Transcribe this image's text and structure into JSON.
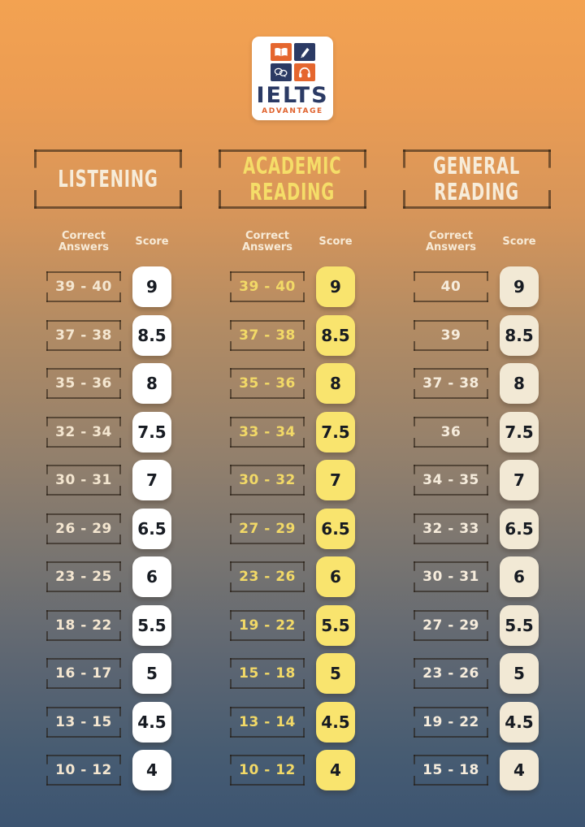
{
  "logo": {
    "title": "IELTS",
    "subtitle": "ADVANTAGE",
    "tiles": [
      "book-icon",
      "pen-icon",
      "speech-bubbles-icon",
      "headphones-icon"
    ],
    "navy": "#2b3a64",
    "orange": "#e5662e"
  },
  "colors": {
    "background_top": "#f3a251",
    "background_bottom": "#3c5471",
    "bracket_border": "rgba(33,23,13,0.55)",
    "cream_text": "#f6e9d4",
    "yellow_text": "#f2d967",
    "listening_score_box": "#ffffff",
    "academic_score_box": "#f9e46e",
    "general_score_box": "#f2e9d5"
  },
  "columns": [
    {
      "title_lines": [
        "LISTENING"
      ],
      "title_color": "#f7ecd9",
      "range_text_color": "#f4e6d0",
      "score_box_color": "#ffffff",
      "labels": {
        "correct": "Correct\nAnswers",
        "score": "Score"
      },
      "rows": [
        {
          "range": "39 - 40",
          "score": "9"
        },
        {
          "range": "37 - 38",
          "score": "8.5"
        },
        {
          "range": "35 - 36",
          "score": "8"
        },
        {
          "range": "32 - 34",
          "score": "7.5"
        },
        {
          "range": "30 - 31",
          "score": "7"
        },
        {
          "range": "26 - 29",
          "score": "6.5"
        },
        {
          "range": "23 - 25",
          "score": "6"
        },
        {
          "range": "18 - 22",
          "score": "5.5"
        },
        {
          "range": "16 - 17",
          "score": "5"
        },
        {
          "range": "13 - 15",
          "score": "4.5"
        },
        {
          "range": "10 - 12",
          "score": "4"
        }
      ]
    },
    {
      "title_lines": [
        "ACADEMIC",
        "READING"
      ],
      "title_color": "#f5dd68",
      "range_text_color": "#f2d967",
      "score_box_color": "#f9e46e",
      "labels": {
        "correct": "Correct\nAnswers",
        "score": "Score"
      },
      "rows": [
        {
          "range": "39 - 40",
          "score": "9"
        },
        {
          "range": "37 - 38",
          "score": "8.5"
        },
        {
          "range": "35 - 36",
          "score": "8"
        },
        {
          "range": "33 - 34",
          "score": "7.5"
        },
        {
          "range": "30 - 32",
          "score": "7"
        },
        {
          "range": "27 - 29",
          "score": "6.5"
        },
        {
          "range": "23 - 26",
          "score": "6"
        },
        {
          "range": "19 - 22",
          "score": "5.5"
        },
        {
          "range": "15 - 18",
          "score": "5"
        },
        {
          "range": "13 - 14",
          "score": "4.5"
        },
        {
          "range": "10 - 12",
          "score": "4"
        }
      ]
    },
    {
      "title_lines": [
        "GENERAL",
        "READING"
      ],
      "title_color": "#f7ecd9",
      "range_text_color": "#f6ecdc",
      "score_box_color": "#f2e9d5",
      "labels": {
        "correct": "Correct\nAnswers",
        "score": "Score"
      },
      "rows": [
        {
          "range": "40",
          "score": "9"
        },
        {
          "range": "39",
          "score": "8.5"
        },
        {
          "range": "37 - 38",
          "score": "8"
        },
        {
          "range": "36",
          "score": "7.5"
        },
        {
          "range": "34 - 35",
          "score": "7"
        },
        {
          "range": "32 - 33",
          "score": "6.5"
        },
        {
          "range": "30 - 31",
          "score": "6"
        },
        {
          "range": "27 - 29",
          "score": "5.5"
        },
        {
          "range": "23 - 26",
          "score": "5"
        },
        {
          "range": "19 - 22",
          "score": "4.5"
        },
        {
          "range": "15 - 18",
          "score": "4"
        }
      ]
    }
  ],
  "chart_data": [
    {
      "type": "table",
      "title": "LISTENING",
      "columns": [
        "Correct Answers",
        "Score"
      ],
      "rows": [
        [
          "39 - 40",
          9
        ],
        [
          "37 - 38",
          8.5
        ],
        [
          "35 - 36",
          8
        ],
        [
          "32 - 34",
          7.5
        ],
        [
          "30 - 31",
          7
        ],
        [
          "26 - 29",
          6.5
        ],
        [
          "23 - 25",
          6
        ],
        [
          "18 - 22",
          5.5
        ],
        [
          "16 - 17",
          5
        ],
        [
          "13 - 15",
          4.5
        ],
        [
          "10 - 12",
          4
        ]
      ]
    },
    {
      "type": "table",
      "title": "ACADEMIC READING",
      "columns": [
        "Correct Answers",
        "Score"
      ],
      "rows": [
        [
          "39 - 40",
          9
        ],
        [
          "37 - 38",
          8.5
        ],
        [
          "35 - 36",
          8
        ],
        [
          "33 - 34",
          7.5
        ],
        [
          "30 - 32",
          7
        ],
        [
          "27 - 29",
          6.5
        ],
        [
          "23 - 26",
          6
        ],
        [
          "19 - 22",
          5.5
        ],
        [
          "15 - 18",
          5
        ],
        [
          "13 - 14",
          4.5
        ],
        [
          "10 - 12",
          4
        ]
      ]
    },
    {
      "type": "table",
      "title": "GENERAL READING",
      "columns": [
        "Correct Answers",
        "Score"
      ],
      "rows": [
        [
          "40",
          9
        ],
        [
          "39",
          8.5
        ],
        [
          "37 - 38",
          8
        ],
        [
          "36",
          7.5
        ],
        [
          "34 - 35",
          7
        ],
        [
          "32 - 33",
          6.5
        ],
        [
          "30 - 31",
          6
        ],
        [
          "27 - 29",
          5.5
        ],
        [
          "23 - 26",
          5
        ],
        [
          "19 - 22",
          4.5
        ],
        [
          "15 - 18",
          4
        ]
      ]
    }
  ]
}
